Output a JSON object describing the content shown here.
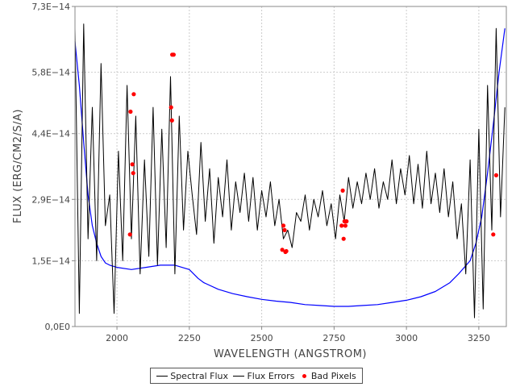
{
  "chart_data": {
    "type": "line",
    "title": "",
    "xlabel": "WAVELENGTH (ANGSTROM)",
    "ylabel": "FLUX (ERG/CM2/S/A)",
    "xlim": [
      1855,
      3345
    ],
    "ylim": [
      0,
      7.3e-14
    ],
    "xticks": [
      2000,
      2250,
      2500,
      2750,
      3000,
      3250
    ],
    "xtick_labels": [
      "2000",
      "2250",
      "2500",
      "2750",
      "3000",
      "3250"
    ],
    "yticks": [
      0,
      1.5e-14,
      2.9e-14,
      4.4e-14,
      5.8e-14,
      7.3e-14
    ],
    "ytick_labels": [
      "0,0E0",
      "1,5E−14",
      "2,9E−14",
      "4,4E−14",
      "5,8E−14",
      "7,3E−14"
    ],
    "grid": true,
    "legend_position": "bottom-center",
    "series": [
      {
        "name": "Spectral Flux",
        "color": "#000000",
        "x": [
          1855,
          1870,
          1885,
          1900,
          1915,
          1930,
          1945,
          1960,
          1975,
          1990,
          2005,
          2020,
          2035,
          2050,
          2065,
          2080,
          2095,
          2110,
          2125,
          2140,
          2155,
          2170,
          2185,
          2200,
          2215,
          2230,
          2245,
          2260,
          2275,
          2290,
          2305,
          2320,
          2335,
          2350,
          2365,
          2380,
          2395,
          2410,
          2425,
          2440,
          2455,
          2470,
          2485,
          2500,
          2515,
          2530,
          2545,
          2560,
          2575,
          2590,
          2605,
          2620,
          2635,
          2650,
          2665,
          2680,
          2695,
          2710,
          2725,
          2740,
          2755,
          2770,
          2785,
          2800,
          2815,
          2830,
          2845,
          2860,
          2875,
          2890,
          2905,
          2920,
          2935,
          2950,
          2965,
          2980,
          2995,
          3010,
          3025,
          3040,
          3055,
          3070,
          3085,
          3100,
          3115,
          3130,
          3145,
          3160,
          3175,
          3190,
          3205,
          3220,
          3235,
          3250,
          3265,
          3280,
          3295,
          3310,
          3325,
          3340
        ],
        "values": [
          6.8e-14,
          3e-15,
          6.9e-14,
          2e-14,
          5e-14,
          1.5e-14,
          6e-14,
          2.3e-14,
          3e-14,
          3e-15,
          4e-14,
          1.5e-14,
          5.5e-14,
          2e-14,
          4.8e-14,
          1.2e-14,
          3.8e-14,
          1.6e-14,
          5e-14,
          1.4e-14,
          4.5e-14,
          1.8e-14,
          5.7e-14,
          1.2e-14,
          4.8e-14,
          2.2e-14,
          4e-14,
          3e-14,
          2.1e-14,
          4.2e-14,
          2.4e-14,
          3.6e-14,
          1.9e-14,
          3.4e-14,
          2.5e-14,
          3.8e-14,
          2.2e-14,
          3.3e-14,
          2.6e-14,
          3.5e-14,
          2.4e-14,
          3.4e-14,
          2.2e-14,
          3.1e-14,
          2.5e-14,
          3.3e-14,
          2.3e-14,
          2.9e-14,
          2e-14,
          2.2e-14,
          1.8e-14,
          2.6e-14,
          2.4e-14,
          3e-14,
          2.2e-14,
          2.9e-14,
          2.5e-14,
          3.1e-14,
          2.3e-14,
          2.8e-14,
          2e-14,
          3e-14,
          2.4e-14,
          3.4e-14,
          2.7e-14,
          3.3e-14,
          2.8e-14,
          3.5e-14,
          2.9e-14,
          3.6e-14,
          2.7e-14,
          3.3e-14,
          2.9e-14,
          3.8e-14,
          2.8e-14,
          3.6e-14,
          3e-14,
          3.9e-14,
          2.8e-14,
          3.7e-14,
          2.7e-14,
          4e-14,
          2.8e-14,
          3.5e-14,
          2.6e-14,
          3.6e-14,
          2.5e-14,
          3.3e-14,
          2e-14,
          2.8e-14,
          1.2e-14,
          3.8e-14,
          2e-15,
          4.5e-14,
          4e-15,
          5.5e-14,
          2.2e-14,
          6.8e-14,
          2.5e-14,
          5e-14
        ]
      },
      {
        "name": "Flux Errors",
        "color": "#0000ff",
        "x": [
          1855,
          1870,
          1885,
          1900,
          1915,
          1930,
          1945,
          1960,
          1975,
          2000,
          2050,
          2100,
          2150,
          2200,
          2250,
          2280,
          2300,
          2350,
          2400,
          2450,
          2500,
          2550,
          2600,
          2650,
          2700,
          2750,
          2800,
          2850,
          2900,
          2950,
          3000,
          3050,
          3100,
          3150,
          3180,
          3200,
          3220,
          3240,
          3260,
          3280,
          3300,
          3320,
          3340
        ],
        "values": [
          6.5e-14,
          5.5e-14,
          4.2e-14,
          3e-14,
          2.3e-14,
          1.9e-14,
          1.6e-14,
          1.45e-14,
          1.4e-14,
          1.35e-14,
          1.3e-14,
          1.35e-14,
          1.4e-14,
          1.4e-14,
          1.3e-14,
          1.1e-14,
          1e-14,
          8.5e-15,
          7.5e-15,
          6.8e-15,
          6.2e-15,
          5.8e-15,
          5.5e-15,
          5e-15,
          4.8e-15,
          4.6e-15,
          4.6e-15,
          4.8e-15,
          5e-15,
          5.5e-15,
          6e-15,
          6.8e-15,
          8e-15,
          1e-14,
          1.2e-14,
          1.35e-14,
          1.5e-14,
          1.9e-14,
          2.5e-14,
          3.5e-14,
          4.6e-14,
          5.8e-14,
          6.8e-14
        ]
      },
      {
        "name": "Bad Pixels",
        "color": "#ff0000",
        "x": [
          2045,
          2047,
          2053,
          2056,
          2058,
          2187,
          2190,
          2191,
          2196,
          2571,
          2575,
          2579,
          2582,
          2585,
          2776,
          2780,
          2783,
          2786,
          2789,
          2793,
          3300,
          3310
        ],
        "values": [
          2.1e-14,
          4.9e-14,
          3.7e-14,
          3.5e-14,
          5.3e-14,
          5e-14,
          4.7e-14,
          6.2e-14,
          6.2e-14,
          1.75e-14,
          2.3e-14,
          2.2e-14,
          1.7e-14,
          1.72e-14,
          2.3e-14,
          3.1e-14,
          2e-14,
          2.4e-14,
          2.3e-14,
          2.4e-14,
          2.1e-14,
          3.45e-14
        ]
      }
    ]
  }
}
